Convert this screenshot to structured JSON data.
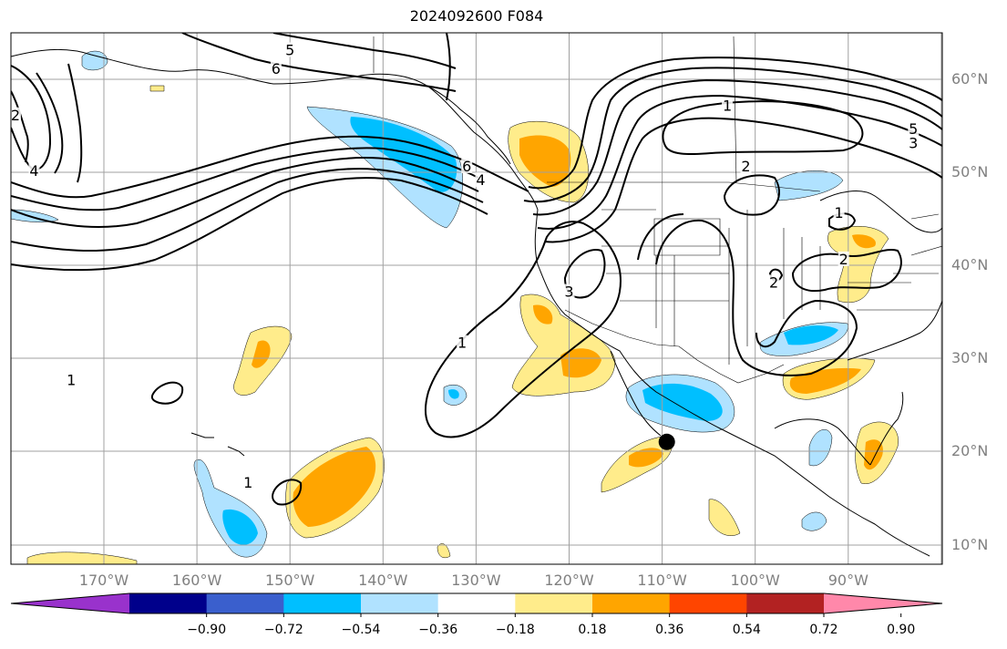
{
  "title": "2024092600 F084",
  "lat_labels": [
    {
      "text": "60°N",
      "lat": 60
    },
    {
      "text": "50°N",
      "lat": 50
    },
    {
      "text": "40°N",
      "lat": 40
    },
    {
      "text": "30°N",
      "lat": 30
    },
    {
      "text": "20°N",
      "lat": 20
    },
    {
      "text": "10°N",
      "lat": 10
    }
  ],
  "lon_labels": [
    {
      "text": "170°W",
      "lon": -170
    },
    {
      "text": "160°W",
      "lon": -160
    },
    {
      "text": "150°W",
      "lon": -150
    },
    {
      "text": "140°W",
      "lon": -140
    },
    {
      "text": "130°W",
      "lon": -130
    },
    {
      "text": "120°W",
      "lon": -120
    },
    {
      "text": "110°W",
      "lon": -110
    },
    {
      "text": "100°W",
      "lon": -100
    },
    {
      "text": "90°W",
      "lon": -90
    }
  ],
  "contour_labels": [
    {
      "text": "5",
      "lon": -150,
      "lat": 63
    },
    {
      "text": "6",
      "lon": -151.5,
      "lat": 61
    },
    {
      "text": "2",
      "lon": -179.5,
      "lat": 56
    },
    {
      "text": "4",
      "lon": -177.5,
      "lat": 50
    },
    {
      "text": "6",
      "lon": -131,
      "lat": 50.5
    },
    {
      "text": "4",
      "lon": -129.5,
      "lat": 49
    },
    {
      "text": "1",
      "lon": -103,
      "lat": 57
    },
    {
      "text": "5",
      "lon": -83,
      "lat": 54.5
    },
    {
      "text": "3",
      "lon": -83,
      "lat": 53
    },
    {
      "text": "2",
      "lon": -101,
      "lat": 50.5
    },
    {
      "text": "1",
      "lon": -91,
      "lat": 45.5
    },
    {
      "text": "2",
      "lon": -90.5,
      "lat": 40.5
    },
    {
      "text": "2",
      "lon": -98,
      "lat": 38
    },
    {
      "text": "3",
      "lon": -120,
      "lat": 37
    },
    {
      "text": "1",
      "lon": -131.5,
      "lat": 31.5
    },
    {
      "text": "1",
      "lon": -173.5,
      "lat": 27.5
    },
    {
      "text": "1",
      "lon": -154.5,
      "lat": 16.5
    }
  ],
  "colorbar": {
    "colors": [
      "#9932cc",
      "#00008b",
      "#3a5fcd",
      "#00bfff",
      "#b0e2ff",
      "#ffffff",
      "#ffec8b",
      "#ffa500",
      "#ff4500",
      "#b22222",
      "#ff88aa"
    ],
    "tick_labels": [
      "−0.90",
      "−0.72",
      "−0.54",
      "−0.36",
      "−0.18",
      "0.18",
      "0.36",
      "0.54",
      "0.72",
      "0.90"
    ]
  },
  "marker": {
    "name": "storm-center-marker",
    "lon": -109.5,
    "lat": 21
  }
}
